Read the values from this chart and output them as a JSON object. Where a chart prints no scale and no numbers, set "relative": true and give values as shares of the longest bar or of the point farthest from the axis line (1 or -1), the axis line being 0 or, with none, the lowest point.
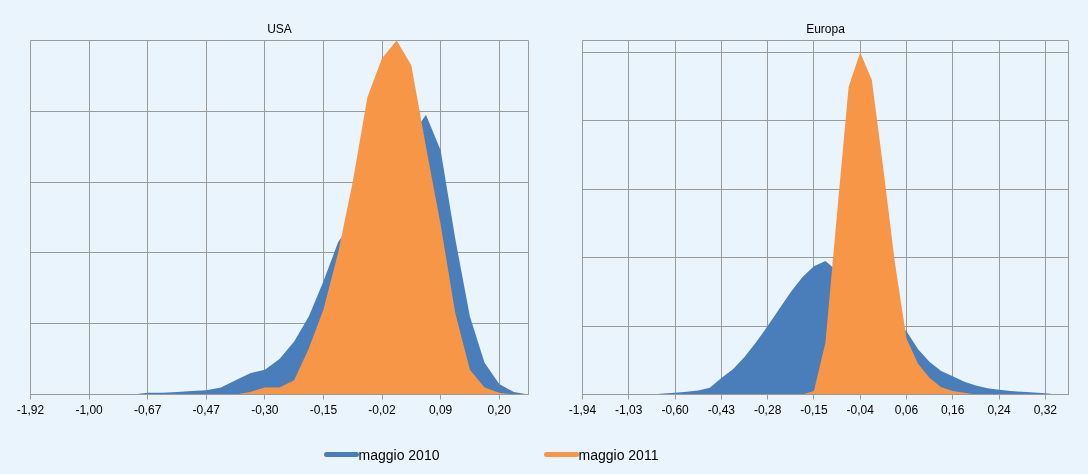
{
  "chart_data": [
    {
      "type": "area",
      "title": "USA",
      "relative": true,
      "grid": true,
      "legend": "bottom",
      "categories": [
        "-1,92",
        null,
        null,
        null,
        "-1,00",
        null,
        null,
        null,
        "-0,67",
        null,
        null,
        null,
        "-0,47",
        null,
        null,
        null,
        "-0,30",
        null,
        null,
        null,
        "-0,15",
        null,
        null,
        null,
        "-0,02",
        null,
        null,
        null,
        "0,09",
        null,
        null,
        null,
        "0,20",
        null,
        null
      ],
      "series": [
        {
          "name": "maggio 2010",
          "color": "#4a7ebb",
          "values": [
            0,
            0,
            0,
            0,
            0,
            0,
            0,
            0,
            0.005,
            0.005,
            0.007,
            0.01,
            0.012,
            0.02,
            0.04,
            0.06,
            0.07,
            0.1,
            0.15,
            0.22,
            0.32,
            0.43,
            null,
            null,
            null,
            null,
            null,
            0.79,
            0.69,
            0.44,
            0.22,
            0.09,
            0.03,
            0.007,
            0
          ]
        },
        {
          "name": "maggio 2011",
          "color": "#f79646",
          "values": [
            0,
            0,
            0,
            0,
            0,
            0,
            0,
            0,
            0,
            0,
            0,
            0,
            0,
            0,
            0,
            0.007,
            0.02,
            0.02,
            0.04,
            0.13,
            0.24,
            0.4,
            0.6,
            0.84,
            0.95,
            1.0,
            0.93,
            0.7,
            0.48,
            0.23,
            0.07,
            0.02,
            0.005,
            0,
            0
          ]
        }
      ]
    },
    {
      "type": "area",
      "title": "Europa",
      "relative": true,
      "grid": true,
      "categories": [
        "-1,94",
        null,
        null,
        null,
        "-1,03",
        null,
        null,
        null,
        "-0,60",
        null,
        null,
        null,
        "-0,43",
        null,
        null,
        null,
        "-0,28",
        null,
        null,
        null,
        "-0,15",
        null,
        null,
        null,
        "-0,04",
        null,
        null,
        null,
        "0,06",
        null,
        null,
        null,
        "0,16",
        null,
        null,
        null,
        "0,24",
        null,
        null,
        null,
        "0,32",
        null,
        null
      ],
      "series": [
        {
          "color": "#4a7ebb",
          "values": [
            0,
            0,
            0,
            0,
            0,
            0,
            0,
            0.003,
            0.005,
            0.008,
            0.012,
            0.02,
            0.048,
            0.074,
            0.11,
            0.153,
            0.2,
            0.25,
            0.3,
            0.343,
            0.375,
            0.39,
            null,
            null,
            null,
            null,
            null,
            null,
            0.185,
            0.132,
            0.095,
            0.069,
            0.053,
            0.037,
            0.026,
            0.018,
            0.014,
            0.01,
            0.008,
            0.006,
            0.004,
            0,
            0
          ]
        },
        {
          "color": "#f79646",
          "values": [
            0,
            0,
            0,
            0,
            0,
            0,
            0,
            0,
            0,
            0,
            0,
            0,
            0,
            0,
            0,
            0,
            0,
            0,
            0,
            0,
            0.01,
            0.153,
            0.53,
            0.9,
            1.0,
            0.92,
            0.66,
            0.385,
            0.164,
            0.09,
            0.048,
            0.021,
            0.01,
            0.005,
            0,
            0,
            0,
            0,
            0,
            0,
            0,
            0,
            0
          ]
        }
      ]
    }
  ]
}
